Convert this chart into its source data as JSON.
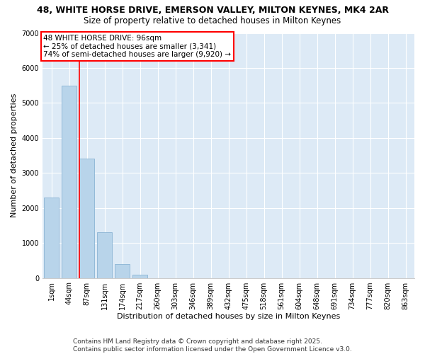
{
  "title_line1": "48, WHITE HORSE DRIVE, EMERSON VALLEY, MILTON KEYNES, MK4 2AR",
  "title_line2": "Size of property relative to detached houses in Milton Keynes",
  "xlabel": "Distribution of detached houses by size in Milton Keynes",
  "ylabel": "Number of detached properties",
  "categories": [
    "1sqm",
    "44sqm",
    "87sqm",
    "131sqm",
    "174sqm",
    "217sqm",
    "260sqm",
    "303sqm",
    "346sqm",
    "389sqm",
    "432sqm",
    "475sqm",
    "518sqm",
    "561sqm",
    "604sqm",
    "648sqm",
    "691sqm",
    "734sqm",
    "777sqm",
    "820sqm",
    "863sqm"
  ],
  "values": [
    2300,
    5500,
    3400,
    1300,
    400,
    100,
    0,
    0,
    0,
    0,
    0,
    0,
    0,
    0,
    0,
    0,
    0,
    0,
    0,
    0,
    0
  ],
  "bar_color": "#b8d4ea",
  "bar_edge_color": "#8ab4d4",
  "vline_color": "red",
  "annotation_text": "48 WHITE HORSE DRIVE: 96sqm\n← 25% of detached houses are smaller (3,341)\n74% of semi-detached houses are larger (9,920) →",
  "annotation_box_color": "white",
  "annotation_box_edge": "red",
  "ylim": [
    0,
    7000
  ],
  "yticks": [
    0,
    1000,
    2000,
    3000,
    4000,
    5000,
    6000,
    7000
  ],
  "bg_color": "#ddeaf6",
  "footer": "Contains HM Land Registry data © Crown copyright and database right 2025.\nContains public sector information licensed under the Open Government Licence v3.0.",
  "title_fontsize": 9,
  "subtitle_fontsize": 8.5,
  "axis_label_fontsize": 8,
  "tick_fontsize": 7,
  "annotation_fontsize": 7.5,
  "footer_fontsize": 6.5
}
